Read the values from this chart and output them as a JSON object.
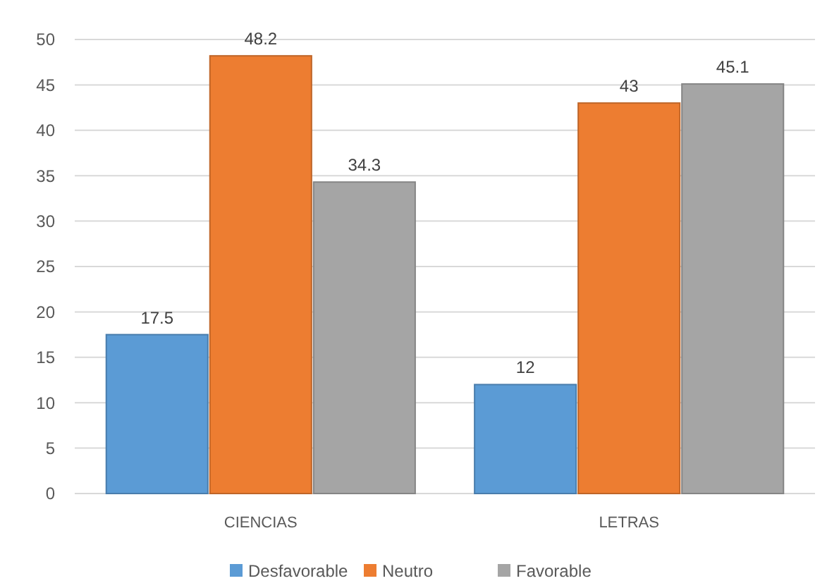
{
  "chart_data": {
    "type": "bar",
    "categories": [
      "CIENCIAS",
      "LETRAS"
    ],
    "series": [
      {
        "name": "Desfavorable",
        "color": "#5b9bd5",
        "values": [
          17.5,
          12
        ]
      },
      {
        "name": "Neutro",
        "color": "#ed7d31",
        "values": [
          48.2,
          43
        ]
      },
      {
        "name": "Favorable",
        "color": "#a5a5a5",
        "values": [
          34.3,
          45.1
        ]
      }
    ],
    "ylim": [
      0,
      50
    ],
    "yticks": [
      0,
      5,
      10,
      15,
      20,
      25,
      30,
      35,
      40,
      45,
      50
    ],
    "grid": true,
    "legend": "bottom",
    "data_labels": true
  }
}
